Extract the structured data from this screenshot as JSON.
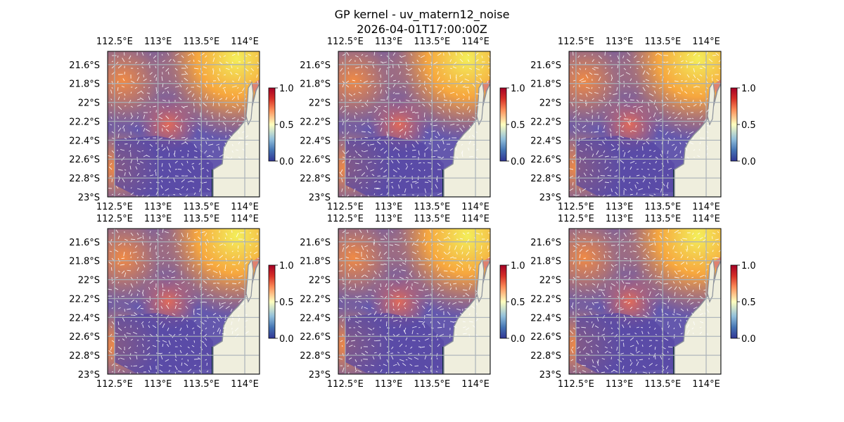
{
  "figure": {
    "title_line1": "GP kernel - uv_matern12_noise",
    "title_line2": "2026-04-01T17:00:00Z"
  },
  "colors": {
    "ocean": "#9db8dc",
    "land": "#efeedd",
    "coastline": "#8a8f9a",
    "gridlines": "#a9b0b8",
    "deep_water": "#0f2a3a",
    "arrows": "#ffffff"
  },
  "map": {
    "lon_ticks": [
      "112.5°E",
      "113°E",
      "113.5°E",
      "114°E"
    ],
    "lat_ticks": [
      "21.6°S",
      "21.8°S",
      "22°S",
      "22.2°S",
      "22.4°S",
      "22.6°S",
      "22.8°S",
      "23°S"
    ],
    "lon_values": [
      112.5,
      113.0,
      113.5,
      114.0
    ],
    "lat_values": [
      -21.6,
      -21.8,
      -22.0,
      -22.2,
      -22.4,
      -22.6,
      -22.8,
      -23.0
    ],
    "extent": {
      "lon_min": 112.42,
      "lon_max": 114.17,
      "lat_min": -23.0,
      "lat_max": -21.46
    },
    "field": "uv_matern12_noise",
    "colormap": "plasma (semi-transparent)",
    "vector_overlay": "quiver (white arrows)",
    "panel_count": 6,
    "layout": "2 rows x 3 columns"
  },
  "colorbar": {
    "ticks": [
      "1.0",
      "0.5",
      "0.0"
    ],
    "range": [
      0.0,
      1.0
    ],
    "colormap": "RdYlBu_r"
  }
}
